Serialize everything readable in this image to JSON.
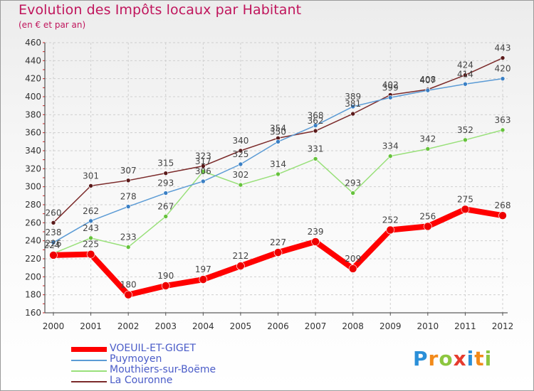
{
  "chart_data": {
    "type": "line",
    "title": "Evolution des Impôts locaux par Habitant",
    "subtitle": "(en € et par an)",
    "x": [
      "2000",
      "2001",
      "2002",
      "2003",
      "2004",
      "2005",
      "2006",
      "2007",
      "2008",
      "2009",
      "2010",
      "2011",
      "2012"
    ],
    "ylim": [
      160,
      460
    ],
    "yticks": [
      160,
      180,
      200,
      220,
      240,
      260,
      280,
      300,
      320,
      340,
      360,
      380,
      400,
      420,
      440,
      460
    ],
    "grid": true,
    "legend_position": "bottom-left",
    "series": [
      {
        "name": "VOEUIL-ET-GIGET",
        "color": "#ff0000",
        "values": [
          224,
          225,
          180,
          190,
          197,
          212,
          227,
          239,
          209,
          252,
          256,
          275,
          268
        ]
      },
      {
        "name": "Puymoyen",
        "color": "#5b9bd5",
        "values": [
          238,
          262,
          278,
          293,
          306,
          325,
          350,
          368,
          389,
          399,
          407,
          414,
          420
        ]
      },
      {
        "name": "Mouthiers-sur-Boëme",
        "color": "#99e07a",
        "values": [
          226,
          243,
          233,
          267,
          317,
          302,
          314,
          331,
          293,
          334,
          342,
          352,
          363
        ]
      },
      {
        "name": "La Couronne",
        "color": "#7b2a2a",
        "values": [
          260,
          301,
          307,
          315,
          323,
          340,
          354,
          362,
          381,
          402,
          408,
          424,
          443
        ]
      }
    ]
  },
  "logo": {
    "text": "Proxiti",
    "letters": [
      "P",
      "r",
      "o",
      "x",
      "i",
      "t",
      "i"
    ]
  }
}
